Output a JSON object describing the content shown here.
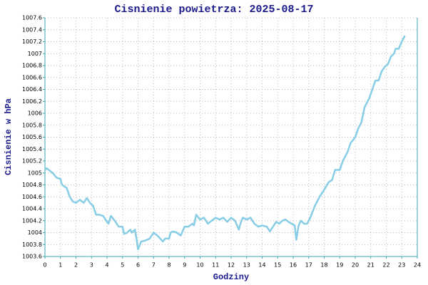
{
  "chart_data": {
    "type": "line",
    "title": "Cisnienie powietrza: 2025-08-17",
    "xlabel": "Godziny",
    "ylabel": "Cisnienie w hPa",
    "xlim": [
      0,
      24
    ],
    "xticks": [
      0,
      1,
      2,
      3,
      4,
      5,
      6,
      7,
      8,
      9,
      10,
      11,
      12,
      13,
      14,
      15,
      16,
      17,
      18,
      19,
      20,
      21,
      22,
      23,
      24
    ],
    "ylim": [
      1003.6,
      1007.6
    ],
    "yticks": [
      1003.6,
      1003.8,
      1004,
      1004.2,
      1004.4,
      1004.6,
      1004.8,
      1005,
      1005.2,
      1005.4,
      1005.6,
      1005.8,
      1006,
      1006.2,
      1006.4,
      1006.6,
      1006.8,
      1007,
      1007.2,
      1007.4,
      1007.6
    ],
    "grid": true,
    "color": "#87cde6",
    "x": [
      0,
      0.1,
      0.25,
      0.5,
      0.75,
      1.0,
      1.1,
      1.4,
      1.6,
      1.8,
      2.0,
      2.25,
      2.5,
      2.7,
      2.9,
      3.1,
      3.3,
      3.5,
      3.75,
      4.0,
      4.1,
      4.25,
      4.5,
      4.75,
      5.0,
      5.1,
      5.3,
      5.5,
      5.6,
      5.8,
      5.9,
      6.0,
      6.2,
      6.5,
      6.75,
      7.0,
      7.25,
      7.5,
      7.6,
      7.75,
      8.0,
      8.1,
      8.25,
      8.5,
      8.75,
      9.0,
      9.25,
      9.5,
      9.6,
      9.75,
      10.0,
      10.25,
      10.5,
      10.75,
      11.0,
      11.25,
      11.5,
      11.75,
      12.0,
      12.25,
      12.5,
      12.6,
      12.75,
      13.0,
      13.25,
      13.5,
      13.75,
      14.0,
      14.3,
      14.5,
      14.7,
      14.9,
      15.1,
      15.3,
      15.5,
      15.7,
      15.9,
      16.1,
      16.2,
      16.35,
      16.5,
      16.7,
      16.9,
      17.1,
      17.4,
      17.7,
      18.0,
      18.3,
      18.5,
      18.7,
      19.0,
      19.2,
      19.5,
      19.7,
      20.0,
      20.2,
      20.4,
      20.6,
      20.9,
      21.1,
      21.3,
      21.5,
      21.7,
      21.9,
      22.1,
      22.3,
      22.5,
      22.6,
      22.8,
      23.0,
      23.2
    ],
    "values": [
      1005.05,
      1005.08,
      1005.05,
      1005.0,
      1004.92,
      1004.9,
      1004.8,
      1004.75,
      1004.6,
      1004.52,
      1004.5,
      1004.55,
      1004.5,
      1004.58,
      1004.5,
      1004.45,
      1004.3,
      1004.3,
      1004.28,
      1004.18,
      1004.15,
      1004.28,
      1004.2,
      1004.1,
      1004.1,
      1003.98,
      1004.0,
      1004.05,
      1004.0,
      1004.05,
      1003.9,
      1003.72,
      1003.85,
      1003.87,
      1003.9,
      1004.0,
      1003.95,
      1003.88,
      1003.85,
      1003.9,
      1003.9,
      1004.0,
      1004.02,
      1004.0,
      1003.95,
      1004.1,
      1004.1,
      1004.15,
      1004.12,
      1004.3,
      1004.22,
      1004.25,
      1004.15,
      1004.2,
      1004.25,
      1004.22,
      1004.25,
      1004.18,
      1004.25,
      1004.2,
      1004.05,
      1004.15,
      1004.25,
      1004.22,
      1004.25,
      1004.15,
      1004.1,
      1004.12,
      1004.1,
      1004.02,
      1004.1,
      1004.18,
      1004.15,
      1004.2,
      1004.22,
      1004.18,
      1004.15,
      1004.12,
      1003.88,
      1004.12,
      1004.2,
      1004.15,
      1004.15,
      1004.25,
      1004.45,
      1004.6,
      1004.72,
      1004.85,
      1004.88,
      1005.05,
      1005.05,
      1005.2,
      1005.35,
      1005.5,
      1005.6,
      1005.75,
      1005.85,
      1006.1,
      1006.25,
      1006.4,
      1006.55,
      1006.55,
      1006.7,
      1006.78,
      1006.82,
      1006.95,
      1007.0,
      1007.08,
      1007.08,
      1007.2,
      1007.3
    ]
  }
}
